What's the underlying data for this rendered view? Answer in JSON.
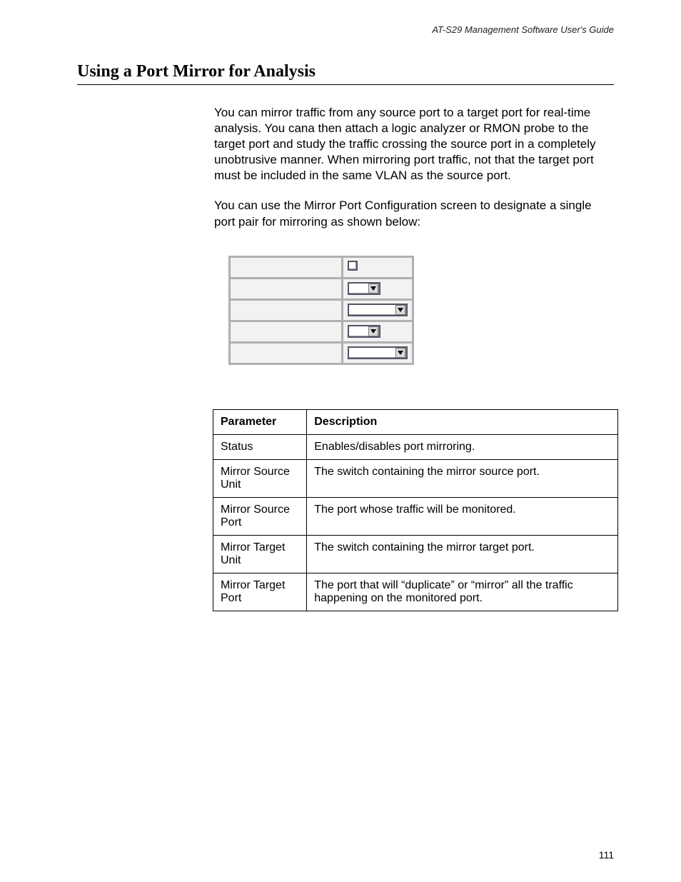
{
  "running_head": "AT-S29 Management Software User's Guide",
  "section_title": "Using a Port Mirror for Analysis",
  "paragraphs": {
    "p1": "You can mirror traffic from any source port to a target port for real-time analysis. You cana then attach a logic analyzer or RMON probe to the target port and study the traffic crossing the source port in a completely unobtrusive manner. When mirroring port traffic, not that the target port must be included in the same VLAN as the source port.",
    "p2": "You can use the Mirror Port Configuration screen to designate a single port pair for mirroring as shown below:"
  },
  "config_rows": {
    "r0": "",
    "r1": "",
    "r2": "",
    "r3": "",
    "r4": ""
  },
  "param_table": {
    "headers": {
      "c0": "Parameter",
      "c1": "Description"
    },
    "rows": {
      "r0": {
        "p": "Status",
        "d": "Enables/disables port mirroring."
      },
      "r1": {
        "p": "Mirror Source Unit",
        "d": "The switch containing the mirror source port."
      },
      "r2": {
        "p": "Mirror Source Port",
        "d": "The port whose traffic will be monitored."
      },
      "r3": {
        "p": "Mirror Target Unit",
        "d": "The switch containing the mirror target port."
      },
      "r4": {
        "p": "Mirror Target Port",
        "d": "The port that will “duplicate” or “mirror” all the traffic happening on the monitored port."
      }
    }
  },
  "page_number": "111"
}
